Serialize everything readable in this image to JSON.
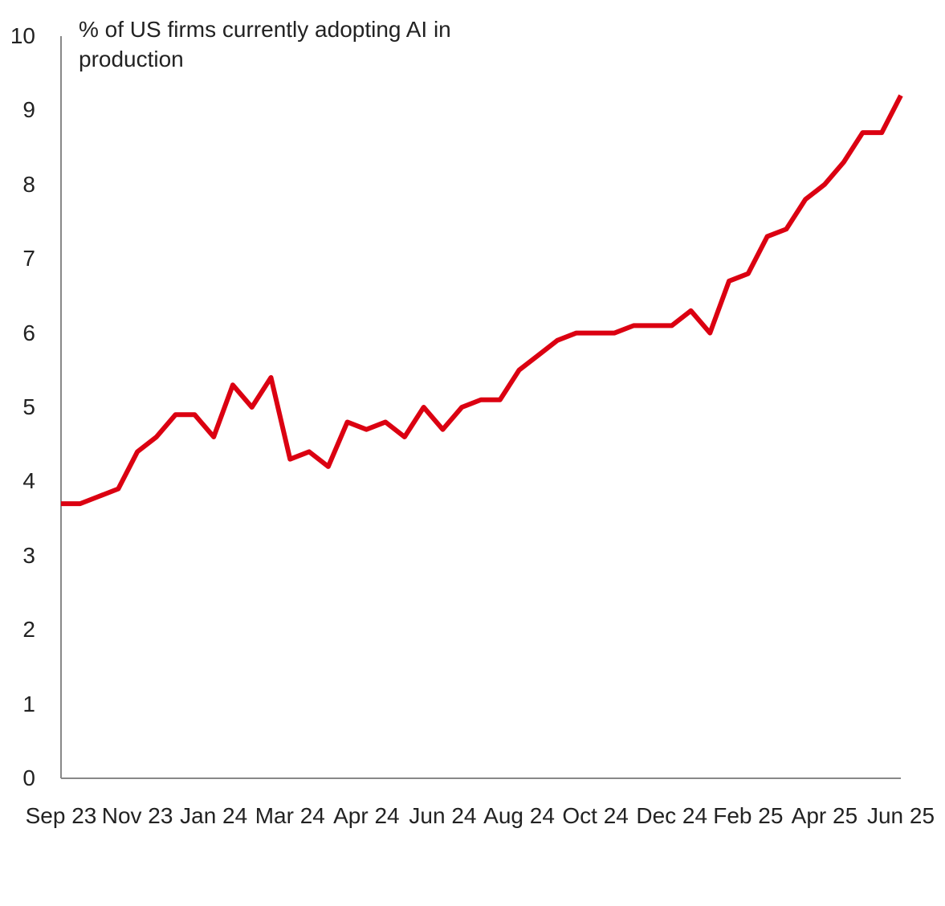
{
  "chart_data": {
    "type": "line",
    "title": "% of US firms currently adopting AI in production",
    "categories": [
      "Sep 23",
      null,
      null,
      null,
      "Nov 23",
      null,
      null,
      null,
      "Jan 24",
      null,
      null,
      null,
      "Mar 24",
      null,
      null,
      null,
      "Apr 24",
      null,
      null,
      null,
      "Jun 24",
      null,
      null,
      null,
      "Aug 24",
      null,
      null,
      null,
      "Oct 24",
      null,
      null,
      null,
      "Dec 24",
      null,
      null,
      null,
      "Feb 25",
      null,
      null,
      null,
      "Apr 25",
      null,
      null,
      null,
      "Jun 25"
    ],
    "series": [
      {
        "color": "#db0011",
        "values": [
          3.7,
          3.7,
          3.8,
          3.9,
          4.4,
          4.6,
          4.9,
          4.9,
          4.6,
          5.3,
          5.0,
          5.4,
          4.3,
          4.4,
          4.2,
          4.8,
          4.7,
          4.8,
          4.6,
          5.0,
          4.7,
          5.0,
          5.1,
          5.1,
          5.5,
          5.7,
          5.9,
          6.0,
          6.0,
          6.0,
          6.1,
          6.1,
          6.1,
          6.3,
          6.0,
          6.7,
          6.8,
          7.3,
          7.4,
          7.8,
          8.0,
          8.3,
          8.7,
          8.7,
          9.2
        ]
      }
    ],
    "ylim": [
      0,
      10
    ],
    "yticks": [
      0,
      1,
      2,
      3,
      4,
      5,
      6,
      7,
      8,
      9,
      10
    ],
    "grid": false
  }
}
